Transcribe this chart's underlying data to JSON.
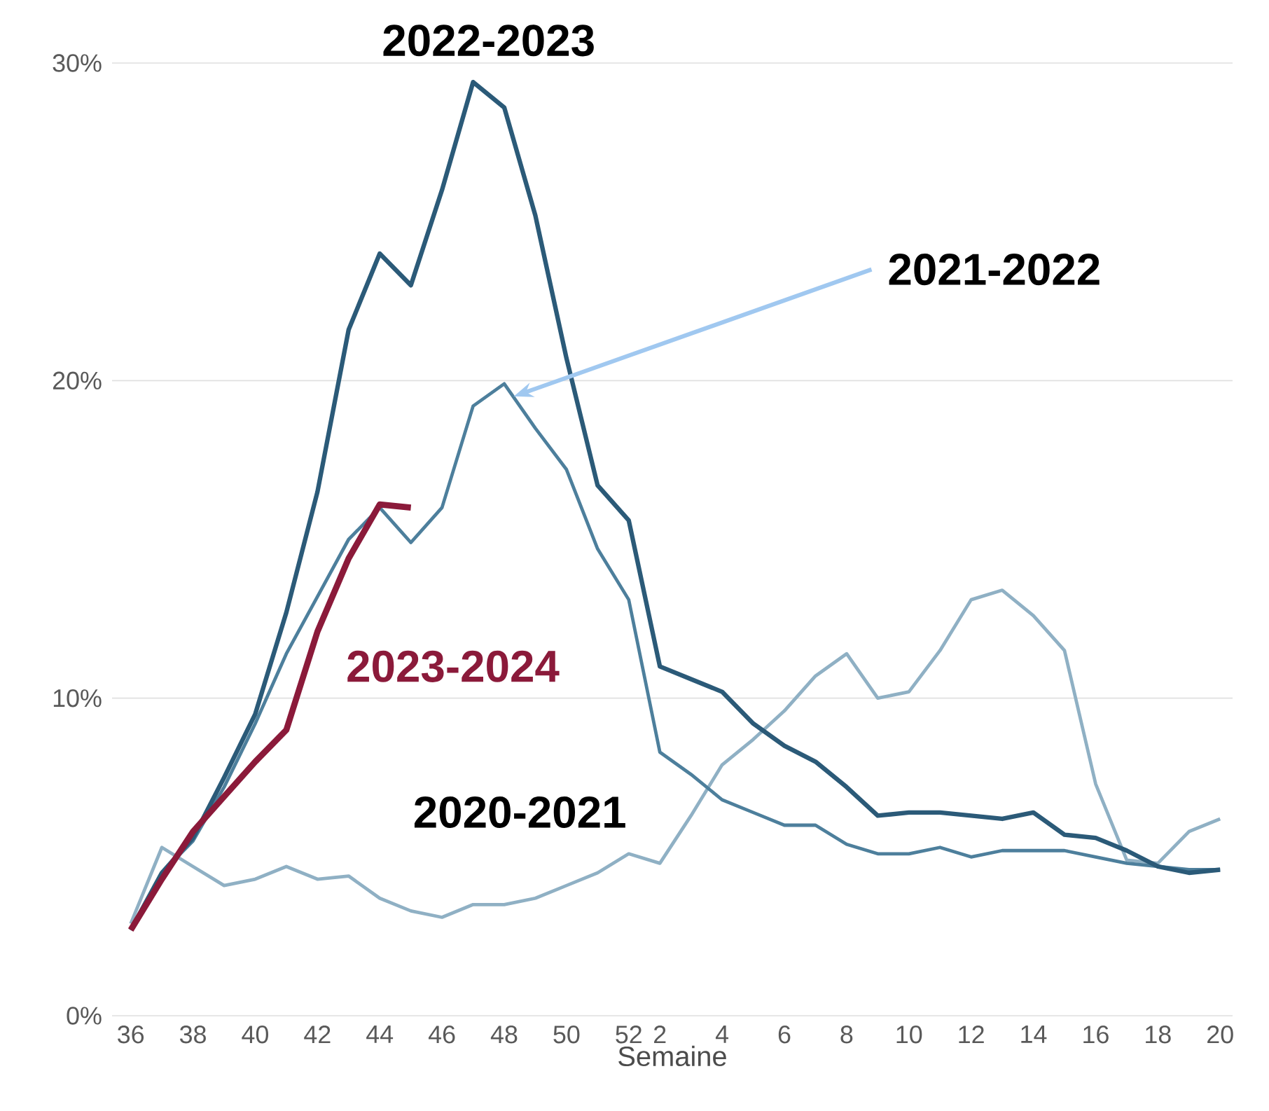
{
  "chart_data": {
    "type": "line",
    "xlabel": "Semaine",
    "categories": [
      "36",
      null,
      "38",
      null,
      "40",
      null,
      "42",
      null,
      "44",
      null,
      "46",
      null,
      "48",
      null,
      "50",
      null,
      "52",
      "2",
      null,
      "4",
      null,
      "6",
      null,
      "8",
      null,
      "10",
      null,
      "12",
      null,
      "14",
      null,
      "16",
      null,
      "18",
      null,
      "20"
    ],
    "ylim": [
      0,
      30
    ],
    "yticks": [
      {
        "value": 0,
        "label": "0%"
      },
      {
        "value": 10,
        "label": "10%"
      },
      {
        "value": 20,
        "label": "20%"
      },
      {
        "value": 30,
        "label": "30%"
      }
    ],
    "grid": "y",
    "marker": "none",
    "line_style": "solid",
    "series": [
      {
        "name": "2020-2021",
        "color": "#8fb0c4",
        "values": [
          2.9,
          5.3,
          4.7,
          4.1,
          4.3,
          4.7,
          4.3,
          4.4,
          3.7,
          3.3,
          3.1,
          3.5,
          3.5,
          3.7,
          4.1,
          4.5,
          5.1,
          4.8,
          6.3,
          7.9,
          8.7,
          9.6,
          10.7,
          11.4,
          10.0,
          10.2,
          11.5,
          13.1,
          13.4,
          12.6,
          11.5,
          7.3,
          4.9,
          4.8,
          5.8,
          6.2
        ]
      },
      {
        "name": "2021-2022",
        "color": "#4d7f9c",
        "values": [
          2.7,
          4.5,
          5.5,
          7.2,
          9.2,
          11.4,
          13.2,
          15.0,
          16.0,
          14.9,
          16.0,
          19.2,
          19.9,
          18.5,
          17.2,
          14.7,
          13.1,
          8.3,
          7.6,
          6.8,
          6.4,
          6.0,
          6.0,
          5.4,
          5.1,
          5.1,
          5.3,
          5.0,
          5.2,
          5.2,
          5.2,
          5.0,
          4.8,
          4.7,
          4.6,
          4.6
        ]
      },
      {
        "name": "2022-2023",
        "color": "#2b5a78",
        "values": [
          2.7,
          4.5,
          5.6,
          7.5,
          9.5,
          12.7,
          16.5,
          21.6,
          24.0,
          23.0,
          26.0,
          29.4,
          28.6,
          25.2,
          20.7,
          16.7,
          15.6,
          11.0,
          10.6,
          10.2,
          9.2,
          8.5,
          8.0,
          7.2,
          6.3,
          6.4,
          6.4,
          6.3,
          6.2,
          6.4,
          5.7,
          5.6,
          5.2,
          4.7,
          4.5,
          4.6
        ]
      },
      {
        "name": "2023-2024",
        "color": "#8b1a3a",
        "values": [
          2.7,
          4.3,
          5.8,
          6.9,
          8.0,
          9.0,
          12.1,
          14.4,
          16.1,
          16.0,
          null,
          null,
          null,
          null,
          null,
          null,
          null,
          null,
          null,
          null,
          null,
          null,
          null,
          null,
          null,
          null,
          null,
          null,
          null,
          null,
          null,
          null,
          null,
          null,
          null,
          null
        ]
      }
    ]
  }
}
